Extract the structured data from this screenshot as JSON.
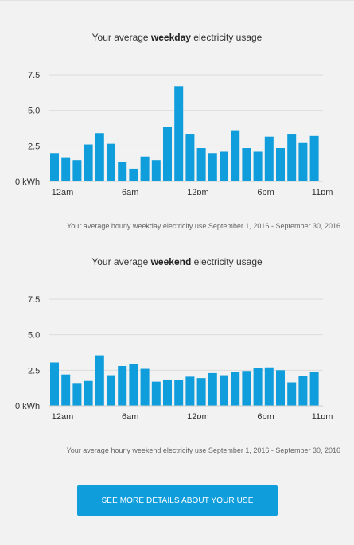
{
  "charts": [
    {
      "title_prefix": "Your average ",
      "title_bold": "weekday",
      "title_suffix": " electricity usage",
      "caption": "Your average hourly weekday electricity use September 1, 2016 - September 30, 2016",
      "chart_data": {
        "type": "bar",
        "title": "Your average weekday electricity usage",
        "unit": "kWh",
        "ylim": [
          0,
          7.5
        ],
        "yticks": [
          "0 kWh",
          "2.5",
          "5.0",
          "7.5"
        ],
        "xticks": [
          {
            "index": 0,
            "label": "12am"
          },
          {
            "index": 6,
            "label": "6am"
          },
          {
            "index": 12,
            "label": "12pm"
          },
          {
            "index": 18,
            "label": "6pm"
          },
          {
            "index": 23,
            "label": "11pm"
          }
        ],
        "values": [
          2.0,
          1.7,
          1.5,
          2.6,
          3.4,
          2.65,
          1.4,
          0.9,
          1.75,
          1.5,
          3.85,
          6.7,
          3.3,
          2.35,
          2.0,
          2.1,
          3.55,
          2.35,
          2.1,
          3.15,
          2.35,
          3.3,
          2.7,
          3.2
        ],
        "grid": true,
        "color": "#0f9ddb"
      }
    },
    {
      "title_prefix": "Your average ",
      "title_bold": "weekend",
      "title_suffix": " electricity usage",
      "caption": "Your average hourly weekend electricity use September 1, 2016 - September 30, 2016",
      "chart_data": {
        "type": "bar",
        "title": "Your average weekend electricity usage",
        "unit": "kWh",
        "ylim": [
          0,
          7.5
        ],
        "yticks": [
          "0 kWh",
          "2.5",
          "5.0",
          "7.5"
        ],
        "xticks": [
          {
            "index": 0,
            "label": "12am"
          },
          {
            "index": 6,
            "label": "6am"
          },
          {
            "index": 12,
            "label": "12pm"
          },
          {
            "index": 18,
            "label": "6pm"
          },
          {
            "index": 23,
            "label": "11pm"
          }
        ],
        "values": [
          3.05,
          2.2,
          1.55,
          1.75,
          3.55,
          2.15,
          2.8,
          2.95,
          2.6,
          1.7,
          1.85,
          1.8,
          2.05,
          1.95,
          2.3,
          2.15,
          2.35,
          2.45,
          2.65,
          2.7,
          2.5,
          1.65,
          2.1,
          2.35
        ],
        "grid": true,
        "color": "#0f9ddb"
      }
    }
  ],
  "button": {
    "label": "SEE MORE DETAILS ABOUT YOUR USE",
    "color": "#0f9ddb"
  }
}
